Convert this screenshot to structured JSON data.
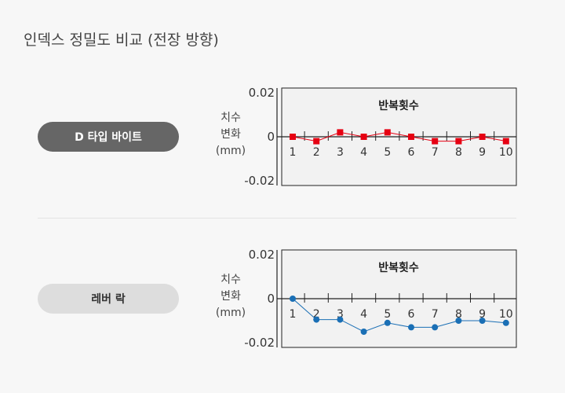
{
  "title": "인덱스 정밀도 비교 (전장 방향)",
  "ylabel": [
    "치수",
    "변화",
    "(mm)"
  ],
  "chart_data": [
    {
      "type": "line",
      "label": "D 타입 바이트",
      "title": "반복횟수",
      "categories": [
        "1",
        "2",
        "3",
        "4",
        "5",
        "6",
        "7",
        "8",
        "9",
        "10"
      ],
      "values": [
        0,
        -0.002,
        0.002,
        0,
        0.002,
        0,
        -0.002,
        -0.002,
        0,
        -0.002
      ],
      "ylim": [
        -0.02,
        0.02
      ],
      "yticks": [
        "0.02",
        "0",
        "-0.02"
      ],
      "color": "#e60012",
      "marker": "square"
    },
    {
      "type": "line",
      "label": "레버 락",
      "title": "반복횟수",
      "categories": [
        "1",
        "2",
        "3",
        "4",
        "5",
        "6",
        "7",
        "8",
        "9",
        "10"
      ],
      "values": [
        0,
        -0.0095,
        -0.0095,
        -0.015,
        -0.011,
        -0.013,
        -0.013,
        -0.01,
        -0.01,
        -0.011
      ],
      "ylim": [
        -0.02,
        0.02
      ],
      "yticks": [
        "0.02",
        "0",
        "-0.02"
      ],
      "color": "#1a6fb5",
      "marker": "circle"
    }
  ]
}
